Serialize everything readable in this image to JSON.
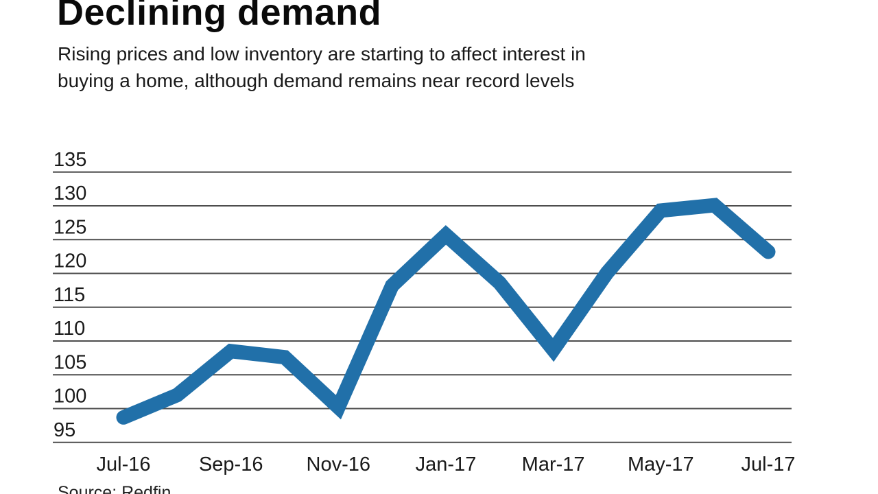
{
  "header": {
    "title": "Declining demand",
    "subtitle_line1": "Rising prices and low inventory are starting to affect interest in",
    "subtitle_line2": "buying a home, although demand remains near record levels"
  },
  "footer": {
    "source": "Source: Redfin"
  },
  "chart_data": {
    "type": "line",
    "title": "Declining demand",
    "subtitle": "Rising prices and low inventory are starting to affect interest in buying a home, although demand remains near record levels",
    "x": [
      "Jul-16",
      "Aug-16",
      "Sep-16",
      "Oct-16",
      "Nov-16",
      "Dec-16",
      "Jan-17",
      "Feb-17",
      "Mar-17",
      "Apr-17",
      "May-17",
      "Jun-17",
      "Jul-17"
    ],
    "x_tick_labels": [
      "Jul-16",
      "Sep-16",
      "Nov-16",
      "Jan-17",
      "Mar-17",
      "May-17",
      "Jul-17"
    ],
    "values": [
      98.7,
      102,
      108.5,
      107.6,
      100.2,
      118.2,
      125.7,
      118.6,
      108.7,
      120.1,
      129.3,
      130.1,
      123.2
    ],
    "yticks": [
      95,
      100,
      105,
      110,
      115,
      120,
      125,
      130,
      135
    ],
    "ylim": [
      95,
      135
    ],
    "grid": true,
    "legend": "none",
    "line_color": "#2170a9",
    "line_width": 21,
    "gridline_color": "#4d4d4d",
    "tick_label_color": "#1a1a1a"
  }
}
